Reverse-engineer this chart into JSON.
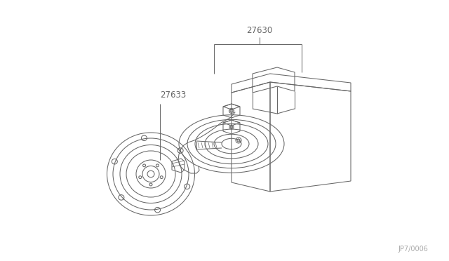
{
  "background_color": "#ffffff",
  "line_color": "#666666",
  "text_color": "#666666",
  "label_27630": "27630",
  "label_27633": "27633",
  "watermark": "JP7/0006",
  "label_fontsize": 8.5,
  "watermark_fontsize": 7,
  "lw": 0.75
}
